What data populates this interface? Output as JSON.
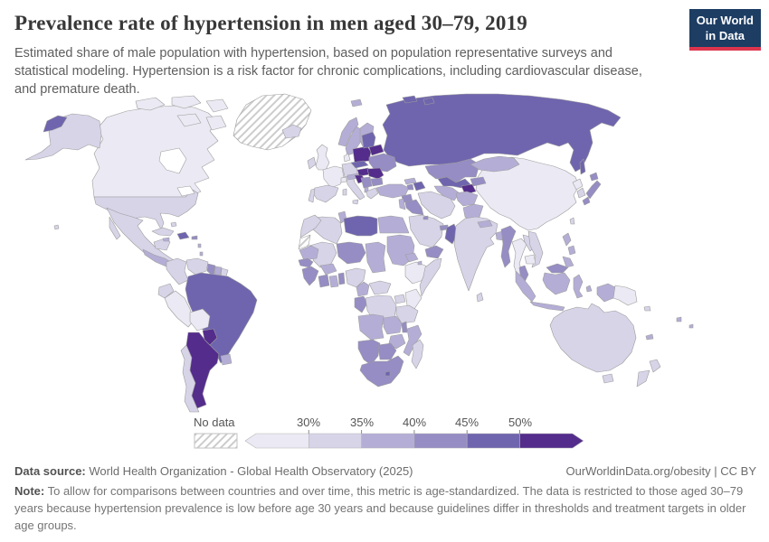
{
  "header": {
    "title": "Prevalence rate of hypertension in men aged 30–79, 2019",
    "subtitle": "Estimated share of male population with hypertension, based on population representative surveys and statistical modeling. Hypertension is a risk factor for chronic complications, including cardiovascular disease, and premature death.",
    "logo": {
      "line1": "Our World",
      "line2": "in Data",
      "bg_color": "#1d3d63",
      "accent_color": "#dd354d"
    }
  },
  "legend": {
    "no_data_label": "No data",
    "tick_labels": [
      "30%",
      "35%",
      "40%",
      "45%",
      "50%"
    ]
  },
  "footer": {
    "datasource_label": "Data source:",
    "datasource_text": " World Health Organization - Global Health Observatory (2025)",
    "attribution": "OurWorldinData.org/obesity | CC BY",
    "note_label": "Note:",
    "note_text": " To allow for comparisons between countries and over time, this metric is age-standardized. The data is restricted to those aged 30–79 years because hypertension prevalence is low before age 30 years and because guidelines differ in thresholds and treatment targets in older age groups."
  },
  "chart_data": {
    "type": "heatmap",
    "subtype": "world-choropleth",
    "title": "Prevalence rate of hypertension in men aged 30–79, 2019",
    "unit": "% of male population aged 30–79",
    "legend_position": "bottom",
    "bins": [
      {
        "range": "<30%",
        "color": "#ebe9f3"
      },
      {
        "range": "30–35%",
        "color": "#d7d4e8"
      },
      {
        "range": "35–40%",
        "color": "#b4aed6"
      },
      {
        "range": "40–45%",
        "color": "#958dc3"
      },
      {
        "range": "45–50%",
        "color": "#6f65ae"
      },
      {
        "range": ">50%",
        "color": "#542c8c"
      }
    ],
    "no_data_style": "white with gray diagonal hatching",
    "regions": {
      "alaska": 2,
      "chukotka": 5,
      "canada": 1,
      "greenland": "nd",
      "iceland": 2,
      "usa": 2,
      "mexico": 2,
      "central_america": 3,
      "cuba": 2,
      "hispaniola": 5,
      "jamaica": 3,
      "puerto_rico": 4,
      "bahamas": 2,
      "lesser_antilles": 3,
      "hawaii": 2,
      "colombia": 2,
      "venezuela": 2,
      "guyana": 4,
      "suriname": 3,
      "french_guiana": 2,
      "ecuador": 2,
      "peru": 1,
      "brazil": 5,
      "bolivia": 1,
      "paraguay": 6,
      "uruguay": 3,
      "argentina": 6,
      "chile": 2,
      "uk": 1,
      "ireland": 2,
      "norway": 3,
      "sweden": 3,
      "finland": 3,
      "denmark": 1,
      "germany": 2,
      "france": 1,
      "spain": 2,
      "portugal": 2,
      "italy": 2,
      "switzerland": 1,
      "austria": 3,
      "czech_slovakia": 5,
      "poland": 6,
      "baltics": 5,
      "belarus": 6,
      "ukraine": 4,
      "hungary": 6,
      "romania": 6,
      "croatia": 6,
      "serbia_bosnia": 4,
      "bulgaria": 4,
      "albania": 3,
      "greece": 2,
      "svalbard": 3,
      "russia": 5,
      "sakhalin": 5,
      "arctic_islands_russia": 5,
      "kazakhstan": 4,
      "uzbekistan": 5,
      "turkmenistan": 3,
      "tajikistan": 6,
      "kyrgyzstan": 4,
      "turkey": 3,
      "georgia": 3,
      "armenia": 4,
      "azerbaijan": 5,
      "syria": 4,
      "iraq": 4,
      "levant": 3,
      "iran": 2,
      "afghanistan": 3,
      "pakistan": 3,
      "saudi_arabia": 2,
      "kuwait": 4,
      "uae": 4,
      "oman": 5,
      "yemen": 4,
      "morocco": 2,
      "western_sahara": "nd",
      "algeria": 2,
      "tunisia": 3,
      "libya": 5,
      "egypt": 3,
      "mauritania": 3,
      "mali": 2,
      "niger": 4,
      "chad": 3,
      "sudan": 3,
      "eritrea": 3,
      "djibouti": 3,
      "ethiopia": 1,
      "somalia": 2,
      "senegal": 4,
      "guinea": 4,
      "ivory_coast": 4,
      "ghana": 3,
      "benin_togo": 4,
      "burkina_faso": 3,
      "nigeria": 2,
      "cameroon": 3,
      "central_african_republic": 2,
      "gabon_congo": 4,
      "drc": 2,
      "uganda": 2,
      "kenya": 1,
      "tanzania": 2,
      "angola": 3,
      "zambia": 3,
      "malawi": 4,
      "mozambique": 3,
      "zimbabwe": 3,
      "namibia": 4,
      "botswana": 4,
      "south_africa": 4,
      "lesotho": 5,
      "madagascar": 2,
      "china": 1,
      "mongolia": 3,
      "north_korea": 1,
      "south_korea": 2,
      "japan": 4,
      "taiwan": 2,
      "india": 2,
      "nepal": 3,
      "bangladesh": 3,
      "sri_lanka": 2,
      "myanmar": 4,
      "thailand": 1,
      "laos": 2,
      "vietnam": 2,
      "cambodia": 1,
      "malaysia": 4,
      "malaysia_borneo": 4,
      "indonesia_sumatra": 3,
      "indonesia_borneo": 3,
      "indonesia_java": 3,
      "indonesia_sulawesi": 3,
      "indonesia_lesser_sunda": 2,
      "indonesia_moluccas": 3,
      "west_papua": 3,
      "papua_new_guinea": 1,
      "philippines": 3,
      "australia": 2,
      "tasmania": 2,
      "new_zealand": 2,
      "fiji": 3,
      "solomon_islands": 2,
      "new_caledonia": 3
    }
  }
}
